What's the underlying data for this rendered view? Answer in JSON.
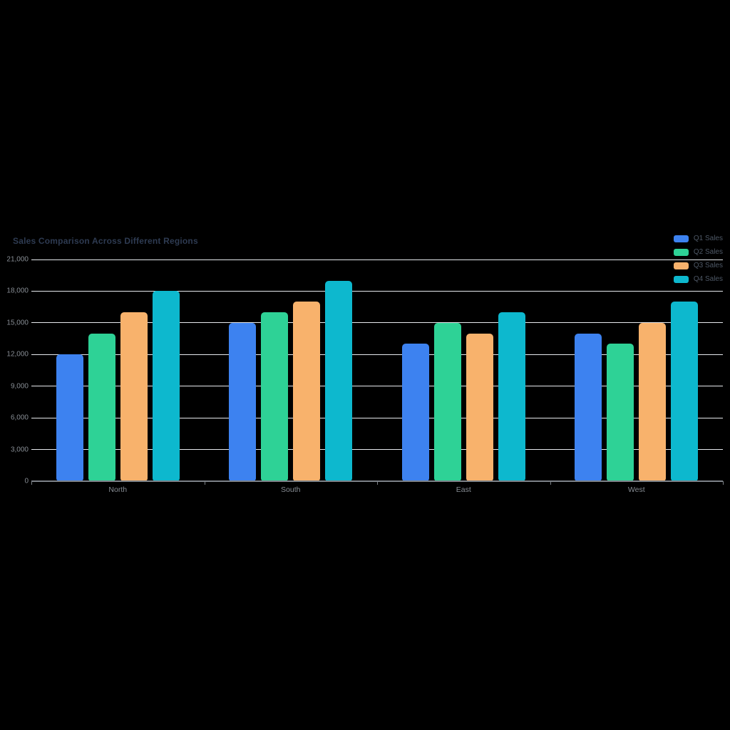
{
  "background": "#000000",
  "chart_data": {
    "type": "bar",
    "title": "Sales Comparison Across Different Regions",
    "categories": [
      "North",
      "South",
      "East",
      "West"
    ],
    "series": [
      {
        "name": "Q1 Sales",
        "color": "#3D82F0",
        "values": [
          12000,
          15000,
          13000,
          14000
        ]
      },
      {
        "name": "Q2 Sales",
        "color": "#2ED296",
        "values": [
          14000,
          16000,
          15000,
          13000
        ]
      },
      {
        "name": "Q3 Sales",
        "color": "#F8B26C",
        "values": [
          16000,
          17000,
          14000,
          15000
        ]
      },
      {
        "name": "Q4 Sales",
        "color": "#0DB8CE",
        "values": [
          18000,
          19000,
          16000,
          17000
        ]
      }
    ],
    "xlabel": "",
    "ylabel": "",
    "ylim": [
      0,
      21000
    ],
    "ytick_step": 3000,
    "ytick_labels": [
      "0",
      "3,000",
      "6,000",
      "9,000",
      "12,000",
      "15,000",
      "18,000",
      "21,000"
    ],
    "grid": true,
    "legend_position": "top-right"
  },
  "styles": {
    "title_color": "#2E3B52",
    "grid_color": "#E7EAEE",
    "axis_color": "#7D8288",
    "tick_label_color": "#878D94",
    "legend_label_color": "#4E5866"
  }
}
